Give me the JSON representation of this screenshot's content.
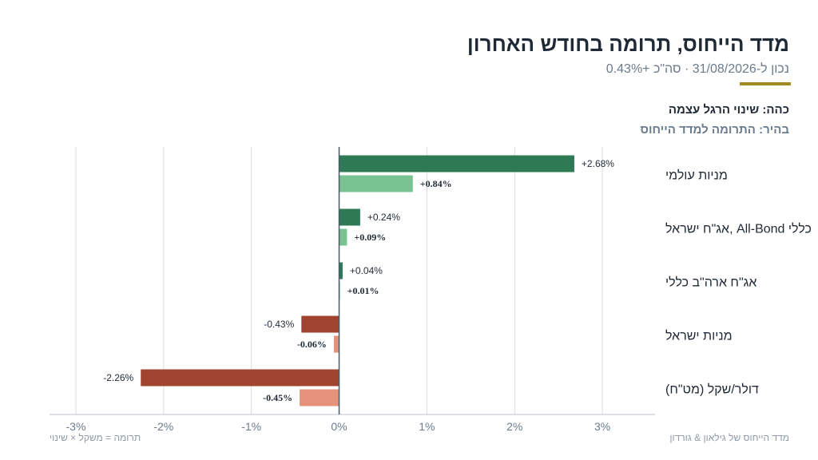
{
  "title": "מדד הייחוס, תרומה בחודש האחרון",
  "subtitle": "נכון ל-31/08/2026 · סה\"כ +0.43%",
  "legend": {
    "dark": "כהה: שינוי הרגל עצמה",
    "light": "בהיר: התרומה למדד הייחוס"
  },
  "footer": {
    "left": "תרומה = משקל × שינוי",
    "right": "מדד הייחוס של גילאון & גורדון"
  },
  "colors": {
    "pos_dark": "#2e7a55",
    "pos_light": "#79c393",
    "neg_dark": "#a1442f",
    "neg_light": "#e5927b",
    "accent": "#a38a1e",
    "grid": "#dcdcdc",
    "zero_line": "#4a5a6a"
  },
  "chart_data": {
    "type": "bar",
    "orientation": "horizontal",
    "categories": [
      "מניות עולמי",
      "אג\"ח ישראל, All-Bond כללי",
      "אג\"ח ארה\"ב כללי",
      "מניות ישראל",
      "דולר/שקל (מט\"ח)"
    ],
    "series": [
      {
        "name": "שינוי הרגל עצמה",
        "values": [
          2.68,
          0.24,
          0.04,
          -0.43,
          -2.26
        ],
        "labels": [
          "+2.68%",
          "+0.24%",
          "+0.04%",
          "-0.43%",
          "-2.26%"
        ]
      },
      {
        "name": "התרומה למדד הייחוס",
        "values": [
          0.84,
          0.09,
          0.01,
          -0.06,
          -0.45
        ],
        "labels": [
          "+0.84%",
          "+0.09%",
          "+0.01%",
          "-0.06%",
          "-0.45%"
        ]
      }
    ],
    "xlim": [
      -3.3,
      3.6
    ],
    "xticks": [
      -3,
      -2,
      -1,
      0,
      1,
      2,
      3
    ],
    "xtick_labels": [
      "-3%",
      "-2%",
      "-1%",
      "0%",
      "1%",
      "2%",
      "3%"
    ],
    "grid": true
  }
}
